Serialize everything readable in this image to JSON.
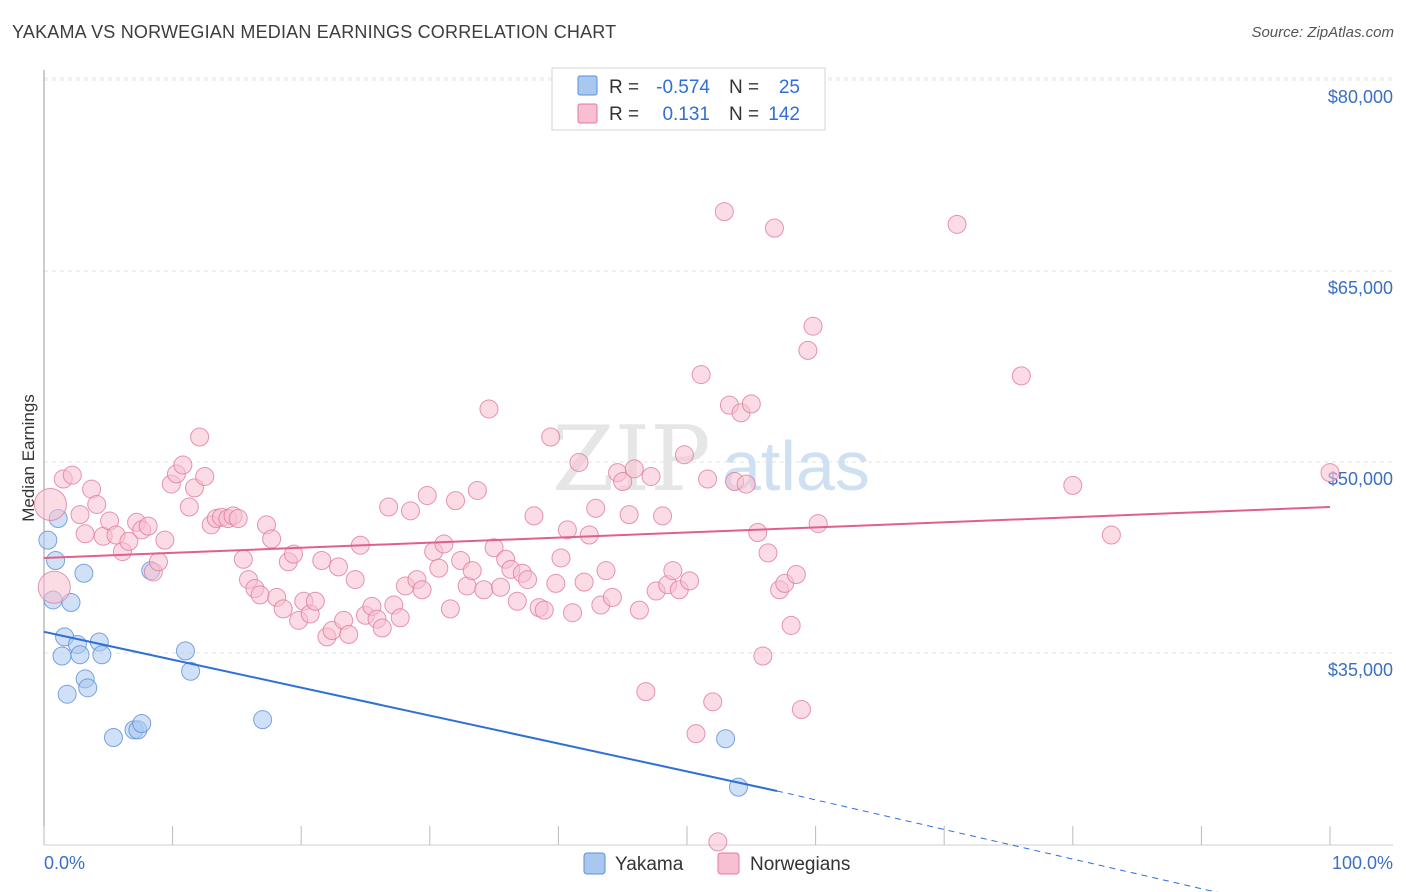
{
  "title": "YAKAMA VS NORWEGIAN MEDIAN EARNINGS CORRELATION CHART",
  "source": "Source: ZipAtlas.com",
  "watermark": {
    "zip": "ZIP",
    "atlas": "atlas"
  },
  "legend": {
    "rows": [
      {
        "r_label": "R =",
        "r_value": "-0.574",
        "n_label": "N =",
        "n_value": "25",
        "color": "#a9c8f0",
        "stroke": "#5b8fd8"
      },
      {
        "r_label": "R =",
        "r_value": "0.131",
        "n_label": "N =",
        "n_value": "142",
        "color": "#f7bfd0",
        "stroke": "#e07aa0"
      }
    ]
  },
  "bottom_legend": [
    "Yakama",
    "Norwegians"
  ],
  "chart_data": {
    "type": "scatter",
    "title": "YAKAMA VS NORWEGIAN MEDIAN EARNINGS CORRELATION CHART",
    "xlabel": "",
    "ylabel": "Median Earnings",
    "x_range_labels": [
      "0.0%",
      "100.0%"
    ],
    "xlim": [
      0,
      100
    ],
    "ylim": [
      20000,
      82000
    ],
    "yticks": [
      35000,
      50000,
      65000,
      80000
    ],
    "ytick_labels": [
      "$35,000",
      "$50,000",
      "$65,000",
      "$80,000"
    ],
    "grid": true,
    "legend_position": "top-center",
    "series": [
      {
        "name": "Yakama",
        "color": "#a9c8f0",
        "stroke": "#5b8fd8",
        "line_color": "#2f6fd6",
        "trend": {
          "x0": 0,
          "y0": 38000,
          "x1": 57,
          "y1": 25500,
          "dash_x1": 100,
          "dash_y1": 15500
        },
        "points": [
          [
            0.3,
            45200
          ],
          [
            0.7,
            40500
          ],
          [
            0.9,
            43600
          ],
          [
            1.1,
            46900
          ],
          [
            1.4,
            36100
          ],
          [
            1.6,
            37600
          ],
          [
            1.8,
            33100
          ],
          [
            2.1,
            40300
          ],
          [
            2.6,
            37000
          ],
          [
            2.8,
            36200
          ],
          [
            3.1,
            42600
          ],
          [
            3.2,
            34300
          ],
          [
            3.4,
            33600
          ],
          [
            4.3,
            37200
          ],
          [
            4.5,
            36200
          ],
          [
            5.4,
            29700
          ],
          [
            7.0,
            30300
          ],
          [
            7.3,
            30300
          ],
          [
            7.6,
            30800
          ],
          [
            8.3,
            42800
          ],
          [
            11.0,
            36500
          ],
          [
            11.4,
            34900
          ],
          [
            17.0,
            31100
          ],
          [
            53.0,
            29600
          ],
          [
            54.0,
            25800
          ]
        ]
      },
      {
        "name": "Norwegians",
        "color": "#f7bfd0",
        "stroke": "#e07aa0",
        "line_color": "#e0608a",
        "trend": {
          "x0": 0,
          "y0": 43800,
          "x1": 100,
          "y1": 47800
        },
        "points": [
          [
            0.5,
            48000
          ],
          [
            0.8,
            41500
          ],
          [
            1.5,
            50000
          ],
          [
            2.2,
            50300
          ],
          [
            2.8,
            47200
          ],
          [
            3.2,
            45700
          ],
          [
            3.7,
            49200
          ],
          [
            4.1,
            48000
          ],
          [
            4.6,
            45500
          ],
          [
            5.1,
            46700
          ],
          [
            5.6,
            45600
          ],
          [
            6.1,
            44300
          ],
          [
            6.6,
            45100
          ],
          [
            7.2,
            46600
          ],
          [
            7.6,
            46000
          ],
          [
            8.1,
            46300
          ],
          [
            8.5,
            42700
          ],
          [
            8.9,
            43500
          ],
          [
            9.4,
            45200
          ],
          [
            9.9,
            49600
          ],
          [
            10.3,
            50400
          ],
          [
            10.8,
            51100
          ],
          [
            11.3,
            47800
          ],
          [
            11.7,
            49300
          ],
          [
            12.1,
            53300
          ],
          [
            12.5,
            50200
          ],
          [
            13.0,
            46400
          ],
          [
            13.4,
            46900
          ],
          [
            13.8,
            47000
          ],
          [
            14.3,
            46900
          ],
          [
            14.7,
            47100
          ],
          [
            15.1,
            46900
          ],
          [
            15.5,
            43700
          ],
          [
            15.9,
            42100
          ],
          [
            16.4,
            41400
          ],
          [
            16.8,
            40900
          ],
          [
            17.3,
            46400
          ],
          [
            17.7,
            45300
          ],
          [
            18.1,
            40700
          ],
          [
            18.6,
            39800
          ],
          [
            19.0,
            43500
          ],
          [
            19.4,
            44100
          ],
          [
            19.8,
            38900
          ],
          [
            20.2,
            40400
          ],
          [
            20.7,
            39400
          ],
          [
            21.1,
            40400
          ],
          [
            21.6,
            43600
          ],
          [
            22.0,
            37600
          ],
          [
            22.4,
            38100
          ],
          [
            22.9,
            43100
          ],
          [
            23.3,
            38900
          ],
          [
            23.7,
            37800
          ],
          [
            24.2,
            42100
          ],
          [
            24.6,
            44800
          ],
          [
            25.0,
            39300
          ],
          [
            25.5,
            40000
          ],
          [
            25.9,
            39000
          ],
          [
            26.3,
            38300
          ],
          [
            26.8,
            47800
          ],
          [
            27.2,
            40100
          ],
          [
            27.7,
            39100
          ],
          [
            28.1,
            41600
          ],
          [
            28.5,
            47500
          ],
          [
            29.0,
            42100
          ],
          [
            29.4,
            41300
          ],
          [
            29.8,
            48700
          ],
          [
            30.3,
            44300
          ],
          [
            30.7,
            43000
          ],
          [
            31.1,
            44900
          ],
          [
            31.6,
            39800
          ],
          [
            32.0,
            48300
          ],
          [
            32.4,
            43600
          ],
          [
            32.9,
            41600
          ],
          [
            33.3,
            42800
          ],
          [
            33.7,
            49100
          ],
          [
            34.2,
            41300
          ],
          [
            34.6,
            55500
          ],
          [
            35.0,
            44600
          ],
          [
            35.5,
            41500
          ],
          [
            35.9,
            43700
          ],
          [
            36.3,
            42900
          ],
          [
            36.8,
            40400
          ],
          [
            37.2,
            42600
          ],
          [
            37.6,
            42100
          ],
          [
            38.1,
            47100
          ],
          [
            38.5,
            39900
          ],
          [
            38.9,
            39700
          ],
          [
            39.4,
            53300
          ],
          [
            39.8,
            41800
          ],
          [
            40.2,
            43800
          ],
          [
            40.7,
            46000
          ],
          [
            41.1,
            39500
          ],
          [
            41.6,
            51300
          ],
          [
            42.0,
            41900
          ],
          [
            42.4,
            45600
          ],
          [
            42.9,
            47700
          ],
          [
            43.3,
            40100
          ],
          [
            43.7,
            42800
          ],
          [
            44.2,
            40700
          ],
          [
            44.6,
            50500
          ],
          [
            45.0,
            49800
          ],
          [
            45.5,
            47200
          ],
          [
            45.9,
            50800
          ],
          [
            46.3,
            39700
          ],
          [
            46.8,
            33300
          ],
          [
            47.2,
            50200
          ],
          [
            47.6,
            41200
          ],
          [
            48.1,
            47100
          ],
          [
            48.5,
            41700
          ],
          [
            48.9,
            42800
          ],
          [
            49.4,
            41300
          ],
          [
            49.8,
            51900
          ],
          [
            50.2,
            42000
          ],
          [
            50.7,
            30000
          ],
          [
            51.1,
            58200
          ],
          [
            51.6,
            50000
          ],
          [
            52.0,
            32500
          ],
          [
            52.4,
            21500
          ],
          [
            52.9,
            71000
          ],
          [
            53.3,
            55800
          ],
          [
            53.7,
            49800
          ],
          [
            54.2,
            55200
          ],
          [
            54.6,
            49600
          ],
          [
            55.0,
            55900
          ],
          [
            55.5,
            45800
          ],
          [
            55.9,
            36100
          ],
          [
            56.3,
            44200
          ],
          [
            56.8,
            69700
          ],
          [
            57.2,
            41300
          ],
          [
            57.6,
            41800
          ],
          [
            58.1,
            38500
          ],
          [
            58.5,
            42500
          ],
          [
            58.9,
            31900
          ],
          [
            59.4,
            60100
          ],
          [
            59.8,
            62000
          ],
          [
            60.2,
            46500
          ],
          [
            71.0,
            70000
          ],
          [
            76.0,
            58100
          ],
          [
            80.0,
            49500
          ],
          [
            83.0,
            45600
          ],
          [
            100.0,
            50500
          ]
        ]
      }
    ]
  }
}
